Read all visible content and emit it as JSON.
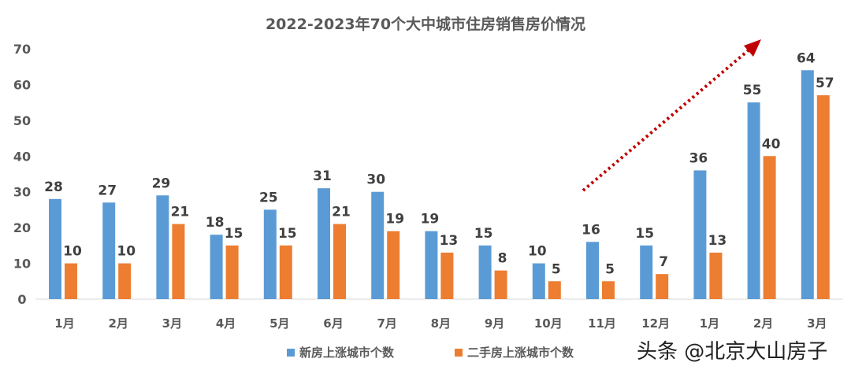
{
  "chart_data": {
    "type": "bar",
    "title": "2022-2023年70个大中城市住房销售房价情况",
    "categories": [
      "1月",
      "2月",
      "3月",
      "4月",
      "5月",
      "6月",
      "7月",
      "8月",
      "9月",
      "10月",
      "11月",
      "12月",
      "1月",
      "2月",
      "3月"
    ],
    "series": [
      {
        "name": "新房上涨城市个数",
        "color": "#5B9BD5",
        "values": [
          28,
          27,
          29,
          18,
          25,
          31,
          30,
          19,
          15,
          10,
          16,
          15,
          36,
          55,
          64
        ]
      },
      {
        "name": "二手房上涨城市个数",
        "color": "#ED7D31",
        "values": [
          10,
          10,
          21,
          15,
          15,
          21,
          19,
          13,
          8,
          5,
          5,
          7,
          13,
          40,
          57
        ]
      }
    ],
    "ylim": [
      0,
      70
    ],
    "yticks": [
      0,
      10,
      20,
      30,
      40,
      50,
      60,
      70
    ],
    "grid": false,
    "legend": "bottom",
    "annotation": {
      "type": "dotted-arrow",
      "color": "#C00000",
      "direction": "up-right",
      "from_category": "11月"
    }
  },
  "watermark": "头条 @北京大山房子"
}
